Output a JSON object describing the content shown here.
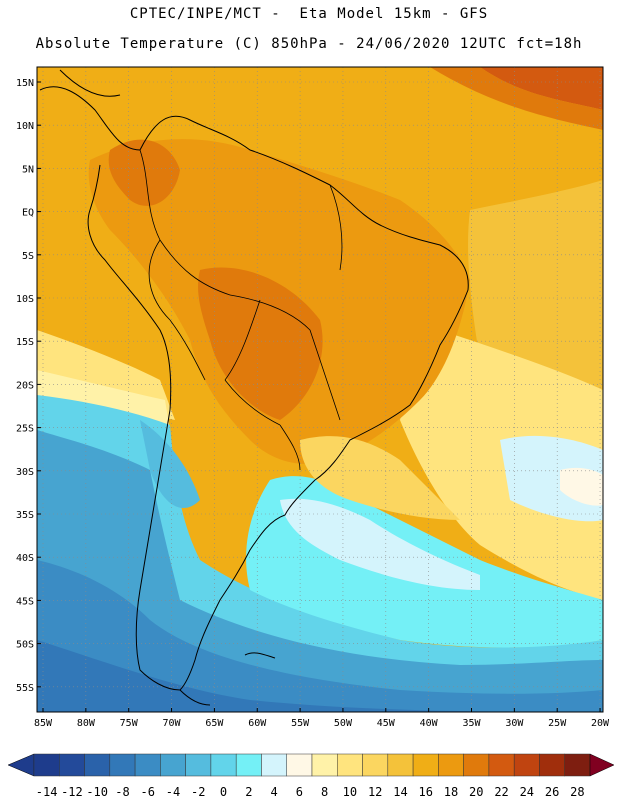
{
  "title_line1": "CPTEC/INPE/MCT -  Eta Model 15km - GFS",
  "title_line2": "Absolute Temperature (C) 850hPa - 24/06/2020 12UTC fct=18h",
  "lat_labels": [
    "15N",
    "10N",
    "5N",
    "EQ",
    "5S",
    "10S",
    "15S",
    "20S",
    "25S",
    "30S",
    "35S",
    "40S",
    "45S",
    "50S",
    "55S"
  ],
  "lon_labels": [
    "85W",
    "80W",
    "75W",
    "70W",
    "65W",
    "60W",
    "55W",
    "50W",
    "45W",
    "40W",
    "35W",
    "30W",
    "25W",
    "20W"
  ],
  "colorbar": {
    "labels": [
      "-14",
      "-12",
      "-10",
      "-8",
      "-6",
      "-4",
      "-2",
      "0",
      "2",
      "4",
      "6",
      "8",
      "10",
      "12",
      "14",
      "16",
      "18",
      "20",
      "22",
      "24",
      "26",
      "28"
    ],
    "colors": [
      "#1e3c8c",
      "#234a9a",
      "#2a62aa",
      "#3278b8",
      "#3b8cc4",
      "#47a4d0",
      "#55bcde",
      "#62d4ea",
      "#74f0f6",
      "#d4f4fc",
      "#fff8e6",
      "#fff2a8",
      "#ffe47e",
      "#fbd660",
      "#f4c23a",
      "#f0ae16",
      "#ec9a10",
      "#e07a0c",
      "#d35a10",
      "#c04410",
      "#a02e0c",
      "#7e1e10"
    ],
    "low_arrow_color": "#1e3c8c",
    "high_arrow_color": "#800020"
  },
  "colors": {
    "ocean_tropical": "#f0ae16",
    "land_warm": "#ec9a10",
    "land_hot": "#e07a0c",
    "cold_south": "#55bcde",
    "coldest_south": "#3278b8",
    "coast_line": "#000000"
  }
}
